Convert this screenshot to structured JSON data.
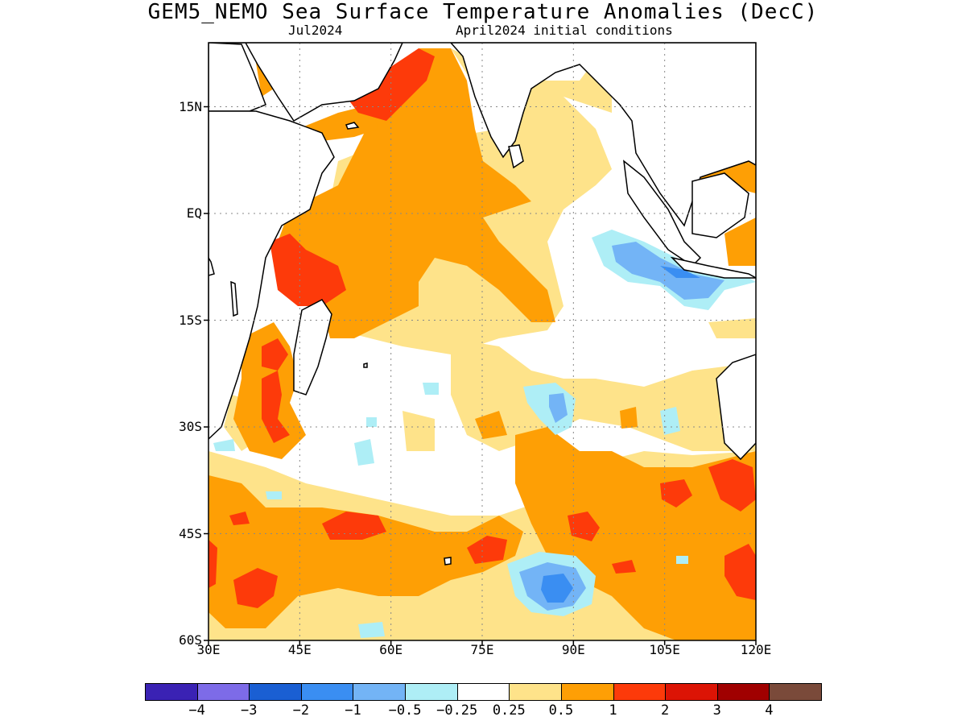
{
  "title": "GEM5_NEMO Sea Surface Temperature Anomalies (DecC)",
  "subtitle_left": "Jul2024",
  "subtitle_right": "April2024 initial conditions",
  "map": {
    "lon_range": [
      30,
      120
    ],
    "lat_range": [
      -60,
      24
    ],
    "lat_ticks": [
      {
        "value": 15,
        "label": "15N"
      },
      {
        "value": 0,
        "label": "EQ"
      },
      {
        "value": -15,
        "label": "15S"
      },
      {
        "value": -30,
        "label": "30S"
      },
      {
        "value": -45,
        "label": "45S"
      },
      {
        "value": -60,
        "label": "60S"
      }
    ],
    "lon_ticks": [
      {
        "value": 30,
        "label": "30E"
      },
      {
        "value": 45,
        "label": "45E"
      },
      {
        "value": 60,
        "label": "60E"
      },
      {
        "value": 75,
        "label": "75E"
      },
      {
        "value": 90,
        "label": "90E"
      },
      {
        "value": 105,
        "label": "105E"
      },
      {
        "value": 120,
        "label": "120E"
      }
    ],
    "grid": true
  },
  "colorbar": {
    "colors": [
      "#3a22b4",
      "#7d6be8",
      "#1a5fd3",
      "#3a8ef2",
      "#73b4f6",
      "#aeeef6",
      "#ffffff",
      "#fee38a",
      "#fe9f05",
      "#fd3a0a",
      "#dc1405",
      "#a00000",
      "#7a4a3a"
    ],
    "labels": [
      "−4",
      "−3",
      "−2",
      "−1",
      "−0.5",
      "−0.25",
      "0.25",
      "0.5",
      "1",
      "2",
      "3",
      "4"
    ]
  }
}
